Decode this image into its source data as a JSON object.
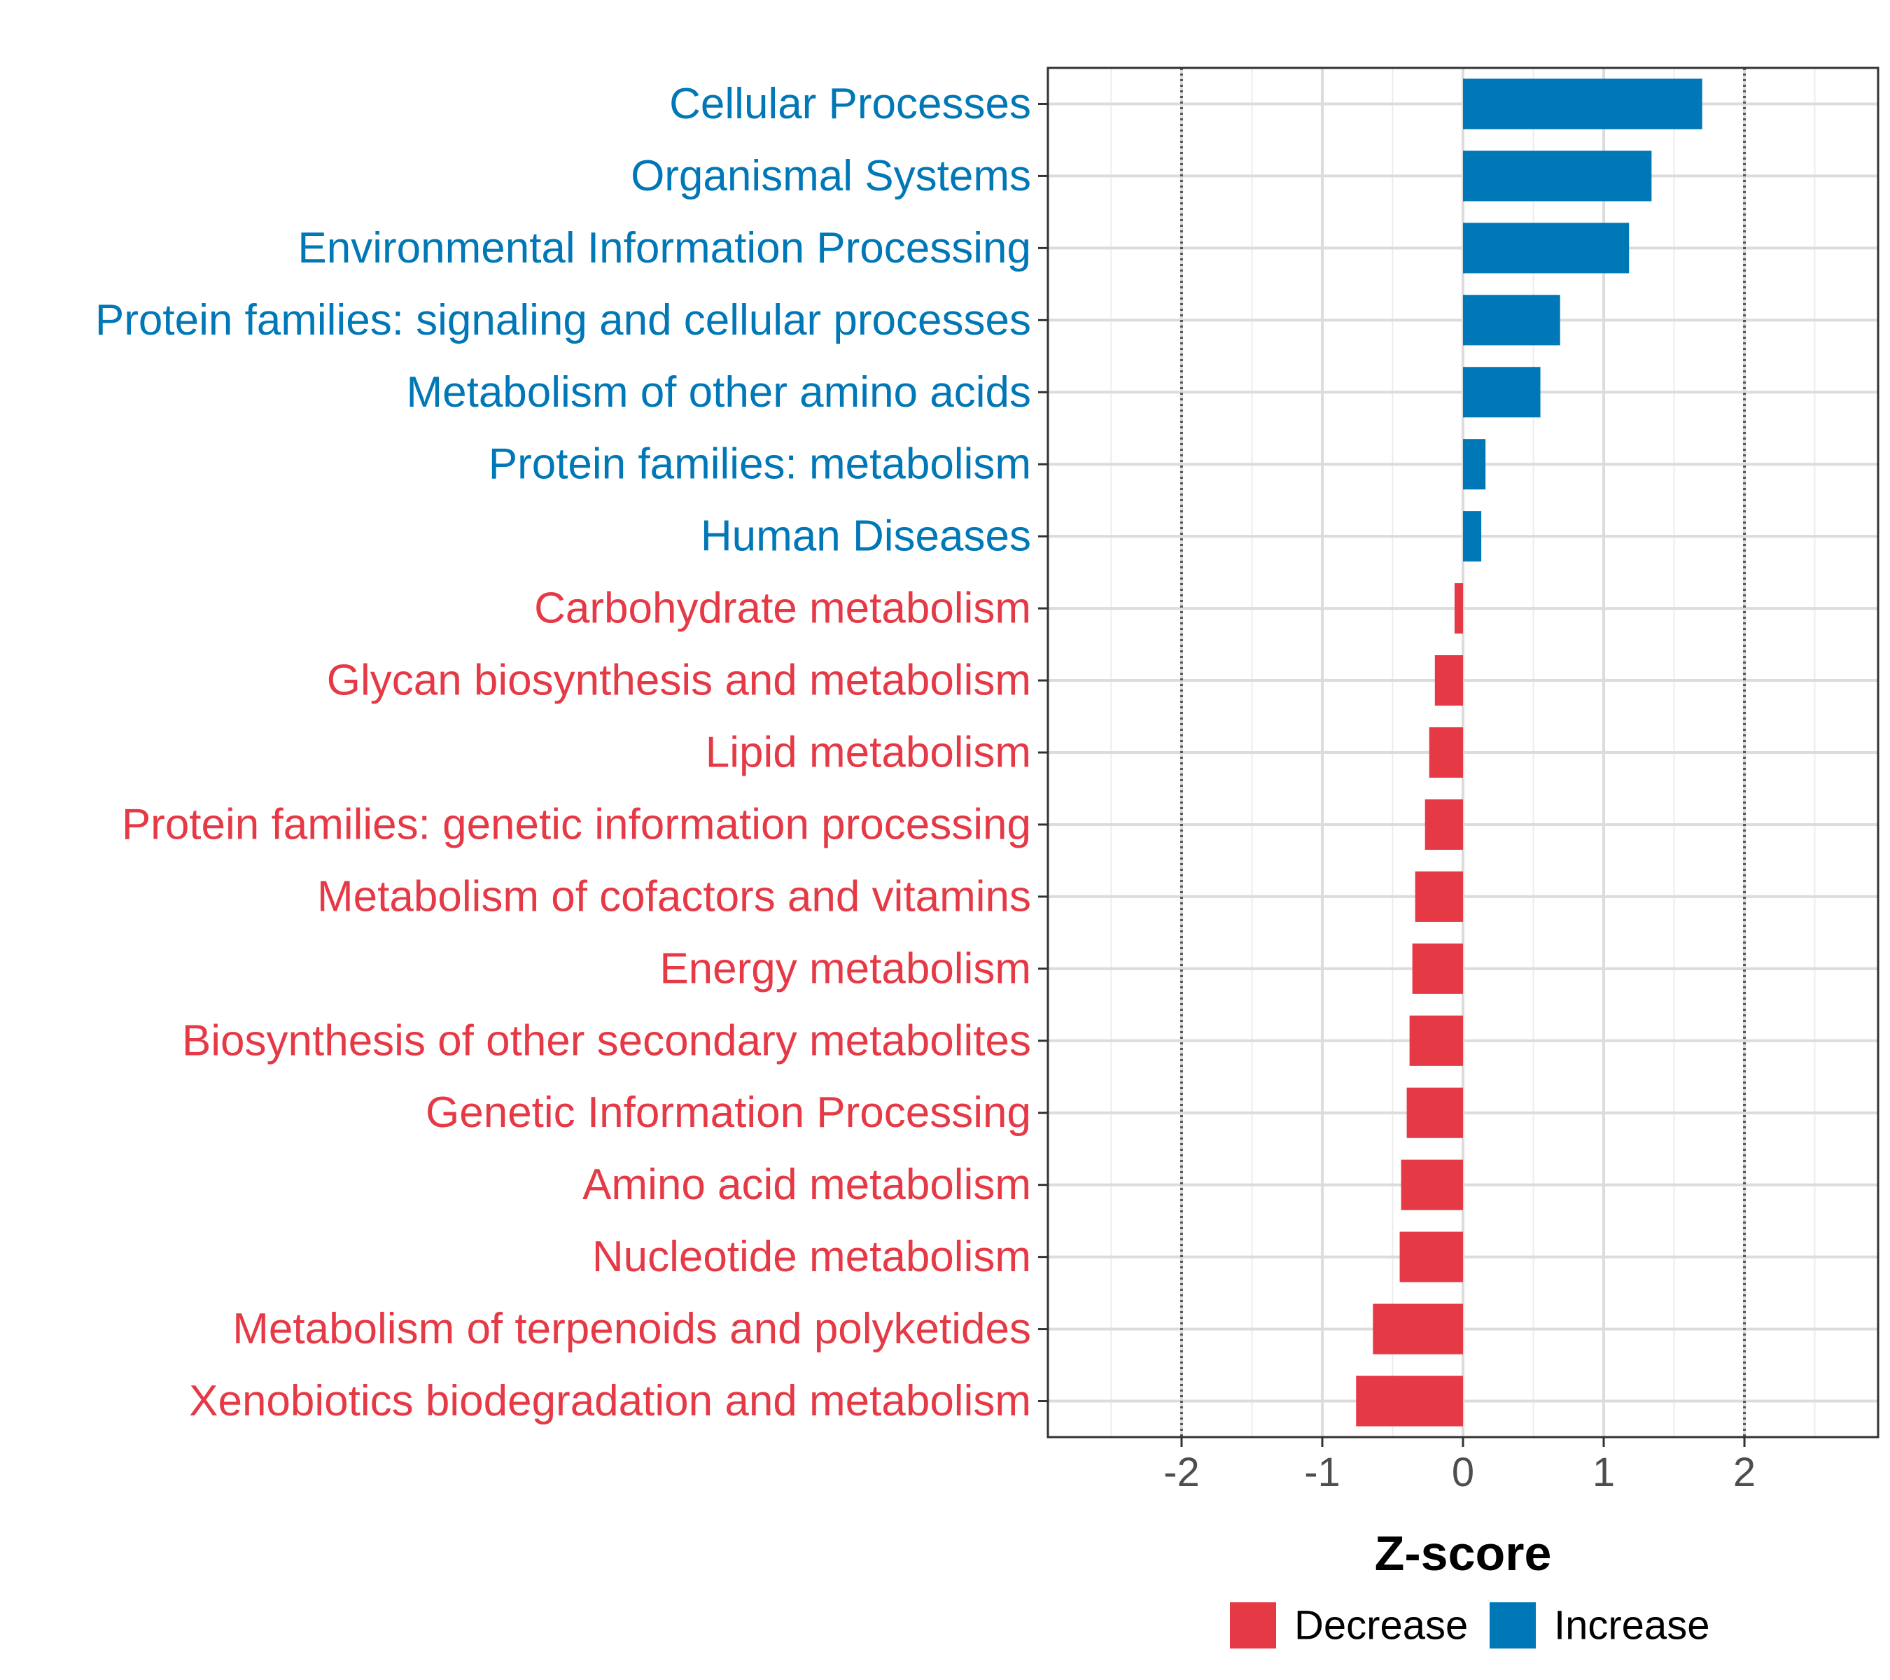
{
  "chart_data": {
    "type": "bar",
    "orientation": "horizontal",
    "categories": [
      "Cellular Processes",
      "Organismal Systems",
      "Environmental Information Processing",
      "Protein families: signaling and cellular processes",
      "Metabolism of other amino acids",
      "Protein families: metabolism",
      "Human Diseases",
      "Carbohydrate metabolism",
      "Glycan biosynthesis and metabolism",
      "Lipid metabolism",
      "Protein families: genetic information processing",
      "Metabolism of cofactors and vitamins",
      "Energy metabolism",
      "Biosynthesis of other secondary metabolites",
      "Genetic Information Processing",
      "Amino acid metabolism",
      "Nucleotide metabolism",
      "Metabolism of terpenoids and polyketides",
      "Xenobiotics biodegradation and metabolism"
    ],
    "values": [
      1.7,
      1.34,
      1.18,
      0.69,
      0.55,
      0.16,
      0.13,
      -0.06,
      -0.2,
      -0.24,
      -0.27,
      -0.34,
      -0.36,
      -0.38,
      -0.4,
      -0.44,
      -0.45,
      -0.64,
      -0.76
    ],
    "xlabel": "Z-score",
    "ylabel": "",
    "xlim": [
      -2.95,
      2.95
    ],
    "xticks": [
      -2,
      -1,
      0,
      1,
      2
    ],
    "xtick_labels": [
      "-2",
      "-1",
      "0",
      "1",
      "2"
    ],
    "reference_lines": [
      -2,
      2
    ],
    "grid": true,
    "legend": {
      "position": "bottom",
      "entries": [
        {
          "label": "Decrease",
          "color": "#E63946"
        },
        {
          "label": "Increase",
          "color": "#0077B6"
        }
      ]
    },
    "colors": {
      "increase": "#0077B6",
      "decrease": "#E63946",
      "grid": "#dcdcdc",
      "reference_line": "#555555"
    }
  }
}
